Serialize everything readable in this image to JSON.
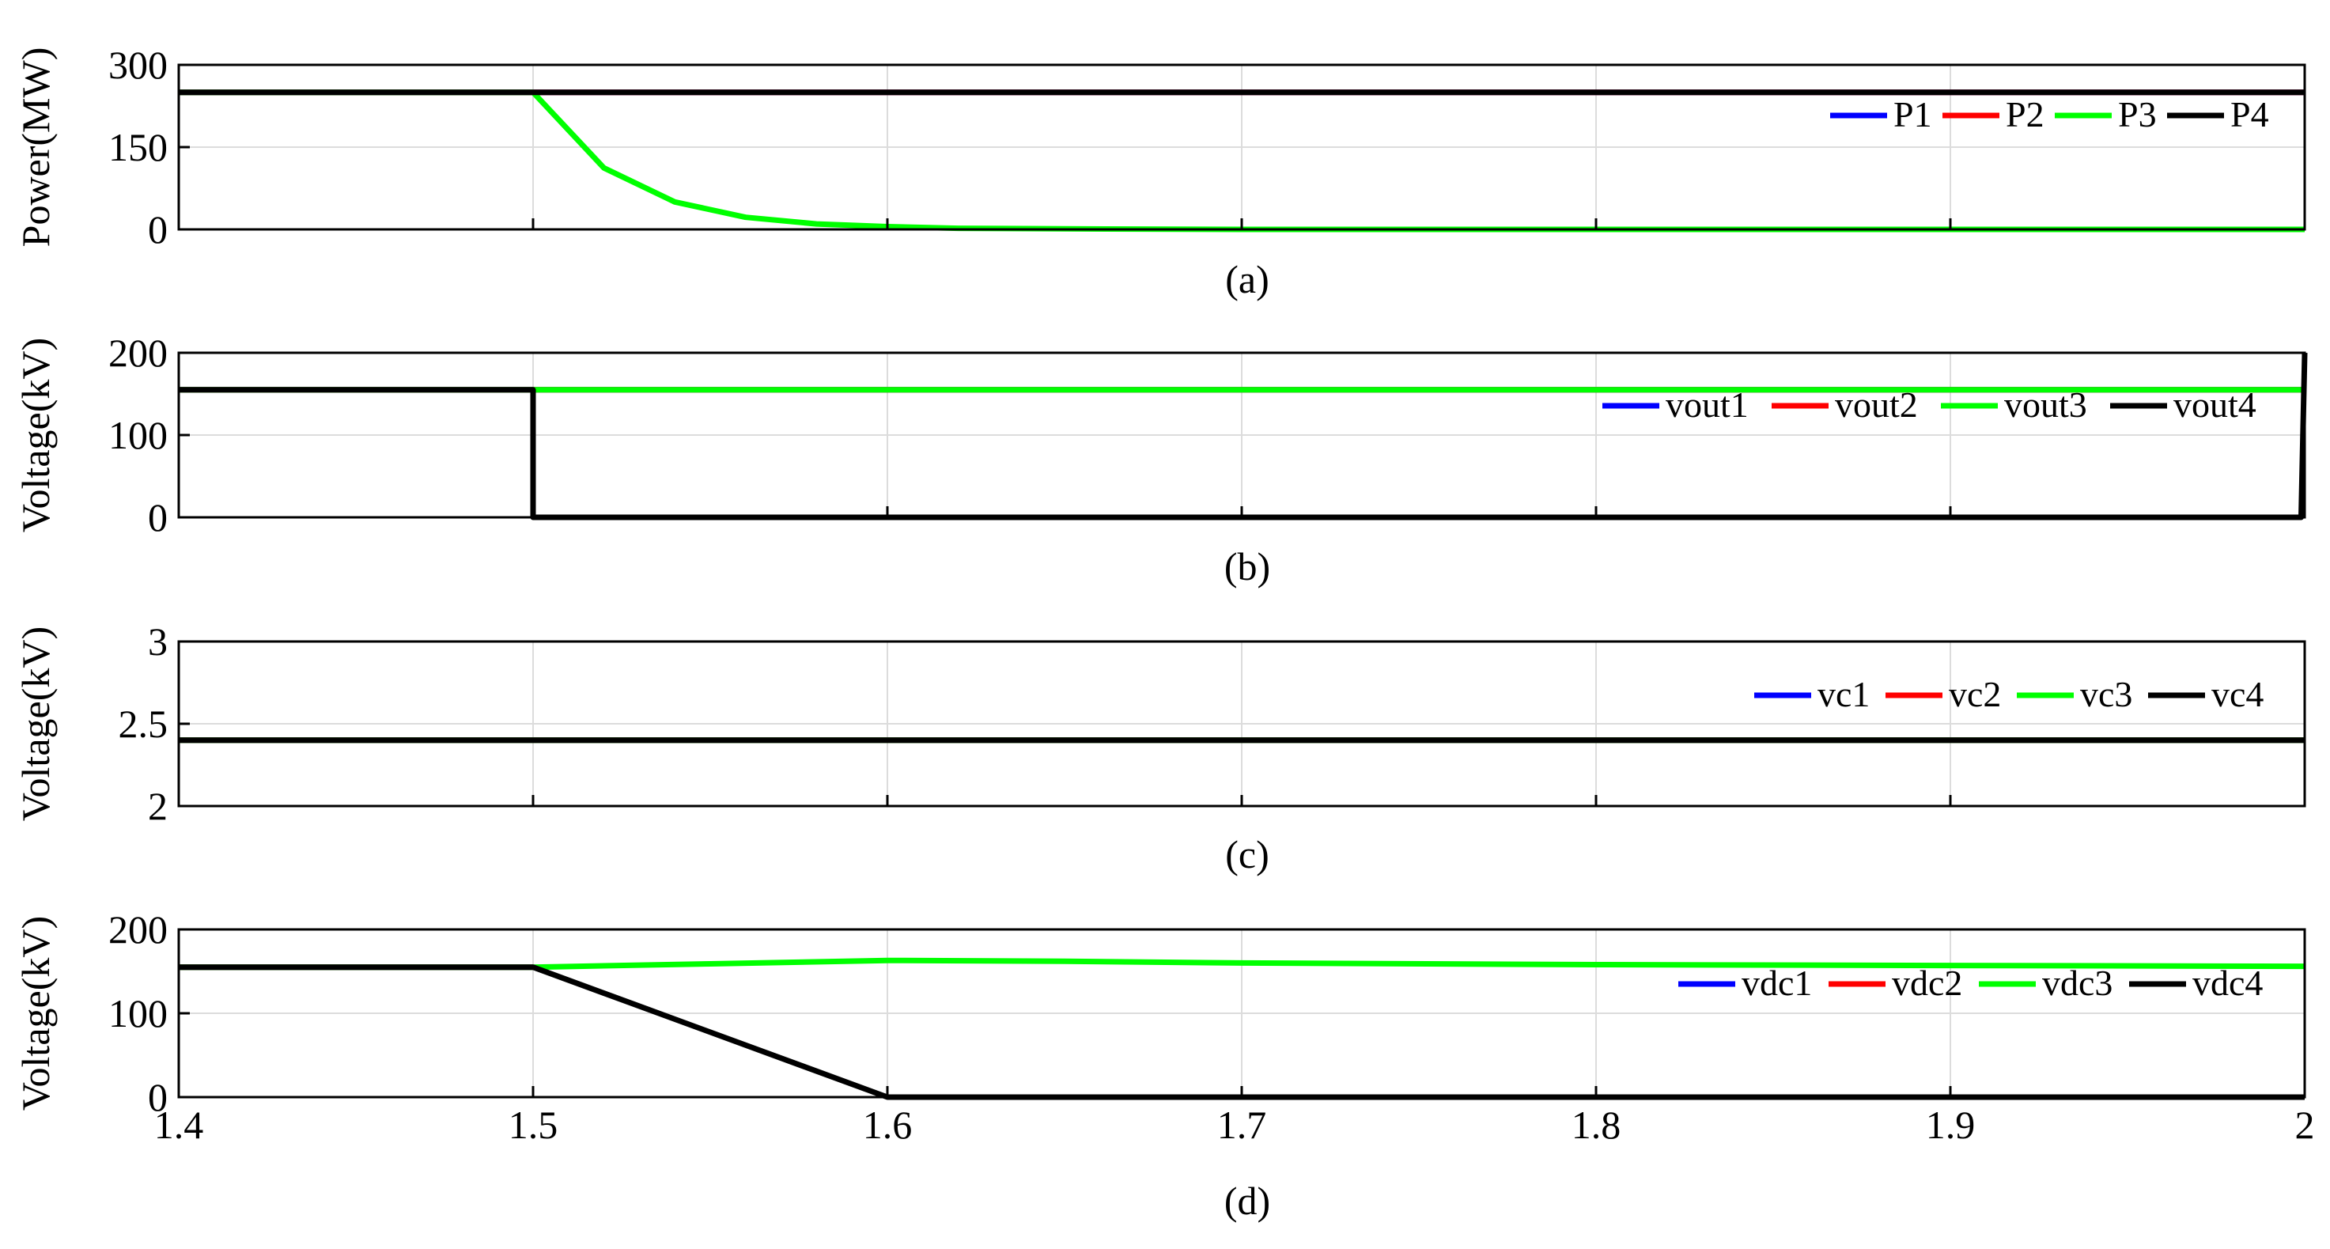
{
  "chart_data": [
    {
      "type": "line",
      "caption": "(a)",
      "ylabel": "Power(MW)",
      "xlim": [
        1.4,
        2
      ],
      "ylim": [
        0,
        300
      ],
      "yticks": [
        "0",
        "150",
        "300"
      ],
      "xtick_labels_shown": false,
      "grid": true,
      "legend": "top-right",
      "series": [
        {
          "name": "P1",
          "color": "#0000ff",
          "x": [
            1.4,
            2.0
          ],
          "y": [
            250,
            250
          ]
        },
        {
          "name": "P2",
          "color": "#ff0000",
          "x": [
            1.4,
            2.0
          ],
          "y": [
            250,
            250
          ]
        },
        {
          "name": "P3",
          "color": "#00ff00",
          "x": [
            1.4,
            1.5,
            1.52,
            1.54,
            1.56,
            1.58,
            1.6,
            1.62,
            1.65,
            1.7,
            2.0
          ],
          "y": [
            250,
            250,
            112,
            50,
            22,
            10,
            5,
            2,
            1,
            0,
            0
          ]
        },
        {
          "name": "P4",
          "color": "#000000",
          "x": [
            1.4,
            2.0
          ],
          "y": [
            250,
            250
          ]
        }
      ]
    },
    {
      "type": "line",
      "caption": "(b)",
      "ylabel": "Voltage(kV)",
      "xlim": [
        1.4,
        2
      ],
      "ylim": [
        0,
        200
      ],
      "yticks": [
        "0",
        "100",
        "200"
      ],
      "xtick_labels_shown": false,
      "grid": true,
      "legend": "top-right",
      "series": [
        {
          "name": "vout1",
          "color": "#0000ff",
          "x": [
            1.4,
            2.0
          ],
          "y": [
            155,
            155
          ]
        },
        {
          "name": "vout2",
          "color": "#ff0000",
          "x": [
            1.4,
            2.0
          ],
          "y": [
            155,
            155
          ]
        },
        {
          "name": "vout3",
          "color": "#00ff00",
          "x": [
            1.4,
            2.0
          ],
          "y": [
            155,
            155
          ]
        },
        {
          "name": "vout4",
          "color": "#000000",
          "x": [
            1.4,
            1.5,
            1.5,
            1.999,
            2.0
          ],
          "y": [
            155,
            155,
            0,
            0,
            200
          ]
        }
      ]
    },
    {
      "type": "line",
      "caption": "(c)",
      "ylabel": "Voltage(kV)",
      "xlim": [
        1.4,
        2
      ],
      "ylim": [
        2,
        3
      ],
      "yticks": [
        "2",
        "2.5",
        "3"
      ],
      "xtick_labels_shown": false,
      "grid": true,
      "legend": "top-right",
      "series": [
        {
          "name": "vc1",
          "color": "#0000ff",
          "x": [
            1.4,
            2.0
          ],
          "y": [
            2.4,
            2.4
          ]
        },
        {
          "name": "vc2",
          "color": "#ff0000",
          "x": [
            1.4,
            2.0
          ],
          "y": [
            2.4,
            2.4
          ]
        },
        {
          "name": "vc3",
          "color": "#00ff00",
          "x": [
            1.4,
            2.0
          ],
          "y": [
            2.4,
            2.4
          ]
        },
        {
          "name": "vc4",
          "color": "#000000",
          "x": [
            1.4,
            2.0
          ],
          "y": [
            2.4,
            2.4
          ]
        }
      ]
    },
    {
      "type": "line",
      "caption": "(d)",
      "ylabel": "Voltage(kV)",
      "xlim": [
        1.4,
        2
      ],
      "ylim": [
        0,
        200
      ],
      "yticks": [
        "0",
        "100",
        "200"
      ],
      "xticks": [
        "1.4",
        "1.5",
        "1.6",
        "1.7",
        "1.8",
        "1.9",
        "2"
      ],
      "xtick_labels_shown": true,
      "grid": true,
      "legend": "top-right",
      "series": [
        {
          "name": "vdc1",
          "color": "#0000ff",
          "x": [
            1.4,
            1.5
          ],
          "y": [
            155,
            155
          ]
        },
        {
          "name": "vdc2",
          "color": "#ff0000",
          "x": [
            1.4,
            1.5
          ],
          "y": [
            155,
            155
          ]
        },
        {
          "name": "vdc3",
          "color": "#00ff00",
          "x": [
            1.4,
            1.5,
            1.55,
            1.6,
            1.65,
            1.7,
            1.8,
            1.9,
            2.0
          ],
          "y": [
            155,
            155,
            159,
            163,
            162,
            160,
            158,
            157,
            156
          ]
        },
        {
          "name": "vdc4",
          "color": "#000000",
          "x": [
            1.4,
            1.5,
            1.6,
            2.0
          ],
          "y": [
            155,
            155,
            0,
            0
          ]
        }
      ]
    }
  ]
}
